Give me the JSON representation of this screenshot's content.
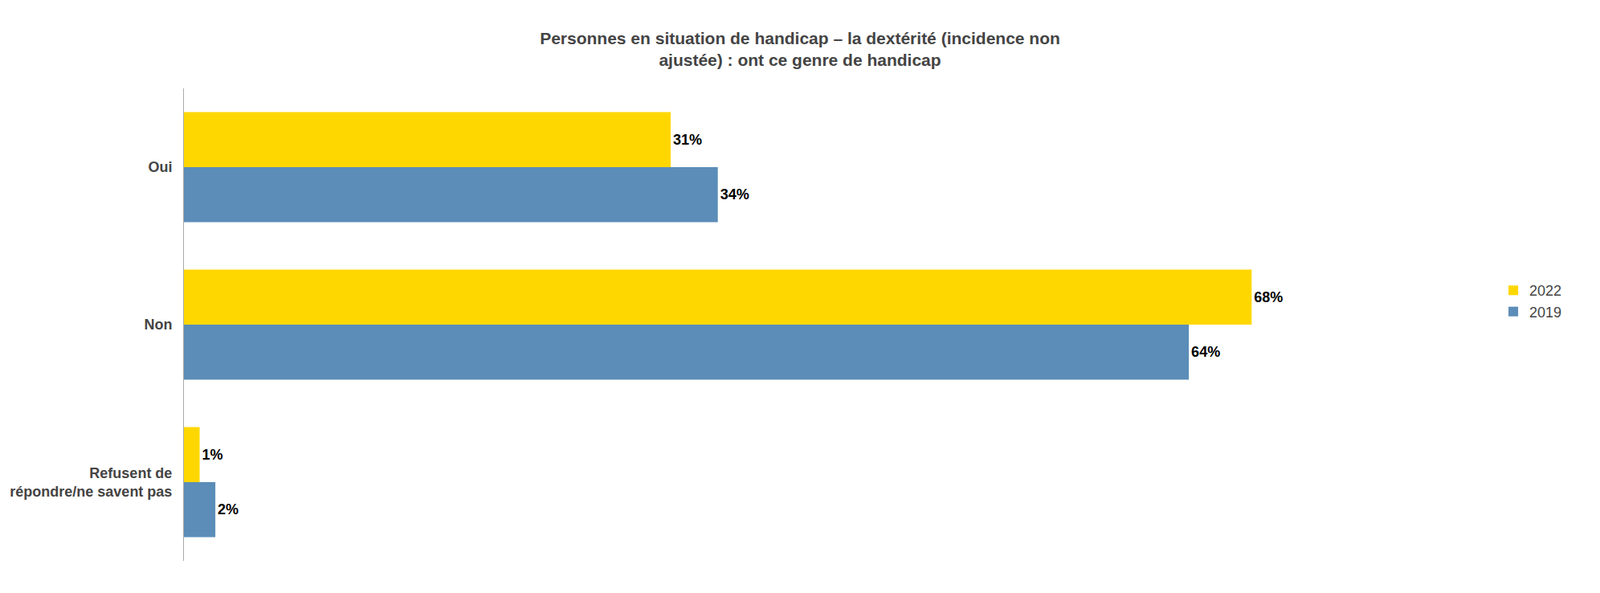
{
  "chart_data": {
    "type": "bar",
    "orientation": "horizontal",
    "title": "Personnes en situation de handicap – la dextérité (incidence non\najustée) : ont ce genre de handicap",
    "categories": [
      "Oui",
      "Non",
      "Refusent de\nrépondre/ne savent pas"
    ],
    "series": [
      {
        "name": "2022",
        "color": "#FFD700",
        "values": [
          31,
          68,
          1
        ],
        "value_labels": [
          "31%",
          "68%",
          "1%"
        ]
      },
      {
        "name": "2019",
        "color": "#5B8DB8",
        "values": [
          34,
          64,
          2
        ],
        "value_labels": [
          "34%",
          "64%",
          "2%"
        ]
      }
    ],
    "xlim": [
      0,
      82
    ],
    "data_labels": true,
    "tick_labels": "y",
    "grid": false,
    "legend": "right"
  }
}
